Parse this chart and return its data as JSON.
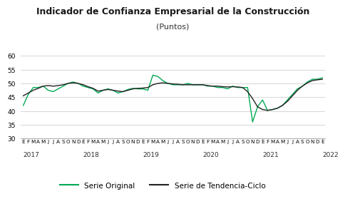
{
  "title": "Indicador de Confianza Empresarial de la Construcción",
  "subtitle": "(Puntos)",
  "ylim": [
    30,
    60
  ],
  "yticks": [
    30,
    35,
    40,
    45,
    50,
    55,
    60
  ],
  "background_color": "#ffffff",
  "grid_color": "#d0d0d0",
  "line_original_color": "#00aa55",
  "line_tendencia_color": "#222222",
  "legend_original": "Serie Original",
  "legend_tendencia": "Serie de Tendencia-Ciclo",
  "title_fontsize": 9,
  "subtitle_fontsize": 8,
  "tick_fontsize": 6.5,
  "legend_fontsize": 7.5,
  "months_labels": [
    "E",
    "F",
    "M",
    "A",
    "M",
    "J",
    "J",
    "A",
    "S",
    "O",
    "N",
    "D",
    "E",
    "F",
    "M",
    "A",
    "M",
    "J",
    "J",
    "A",
    "S",
    "O",
    "N",
    "D",
    "E",
    "F",
    "M",
    "A",
    "M",
    "J",
    "J",
    "A",
    "S",
    "O",
    "N",
    "D",
    "E",
    "F",
    "M",
    "A",
    "M",
    "J",
    "J",
    "A",
    "S",
    "O",
    "N",
    "D",
    "E",
    "F",
    "M",
    "A",
    "M",
    "J",
    "J",
    "A",
    "S",
    "O",
    "N",
    "D",
    "E"
  ],
  "year_positions": [
    0,
    12,
    24,
    36,
    48,
    60
  ],
  "year_labels": [
    "2017",
    "2018",
    "2019",
    "2020",
    "2021",
    "2022"
  ],
  "serie_original": [
    42.0,
    46.0,
    48.5,
    48.5,
    49.0,
    47.5,
    47.0,
    48.0,
    49.0,
    50.0,
    50.5,
    50.0,
    49.0,
    48.5,
    48.0,
    46.5,
    47.5,
    48.0,
    47.5,
    46.5,
    47.0,
    47.8,
    48.2,
    48.0,
    48.0,
    47.5,
    53.0,
    52.5,
    51.0,
    50.0,
    49.5,
    49.5,
    49.5,
    50.0,
    49.5,
    49.5,
    49.5,
    49.0,
    49.0,
    48.5,
    48.5,
    48.0,
    49.0,
    48.5,
    48.5,
    48.5,
    36.0,
    41.5,
    44.0,
    40.2,
    40.5,
    41.0,
    42.0,
    44.0,
    46.0,
    48.0,
    49.0,
    50.5,
    51.5,
    51.5,
    52.0
  ],
  "serie_tendencia": [
    45.5,
    46.5,
    47.5,
    48.2,
    49.0,
    49.2,
    49.0,
    49.2,
    49.5,
    50.0,
    50.2,
    50.0,
    49.5,
    48.8,
    48.2,
    47.2,
    47.5,
    47.8,
    47.5,
    47.2,
    47.0,
    47.5,
    48.0,
    48.2,
    48.3,
    48.5,
    49.5,
    50.0,
    50.2,
    50.0,
    49.8,
    49.7,
    49.5,
    49.5,
    49.5,
    49.5,
    49.5,
    49.2,
    49.0,
    49.0,
    48.8,
    48.7,
    48.8,
    48.7,
    48.5,
    47.0,
    44.5,
    41.5,
    40.5,
    40.2,
    40.5,
    41.0,
    42.0,
    43.5,
    45.5,
    47.5,
    49.0,
    50.2,
    51.0,
    51.3,
    51.5
  ]
}
